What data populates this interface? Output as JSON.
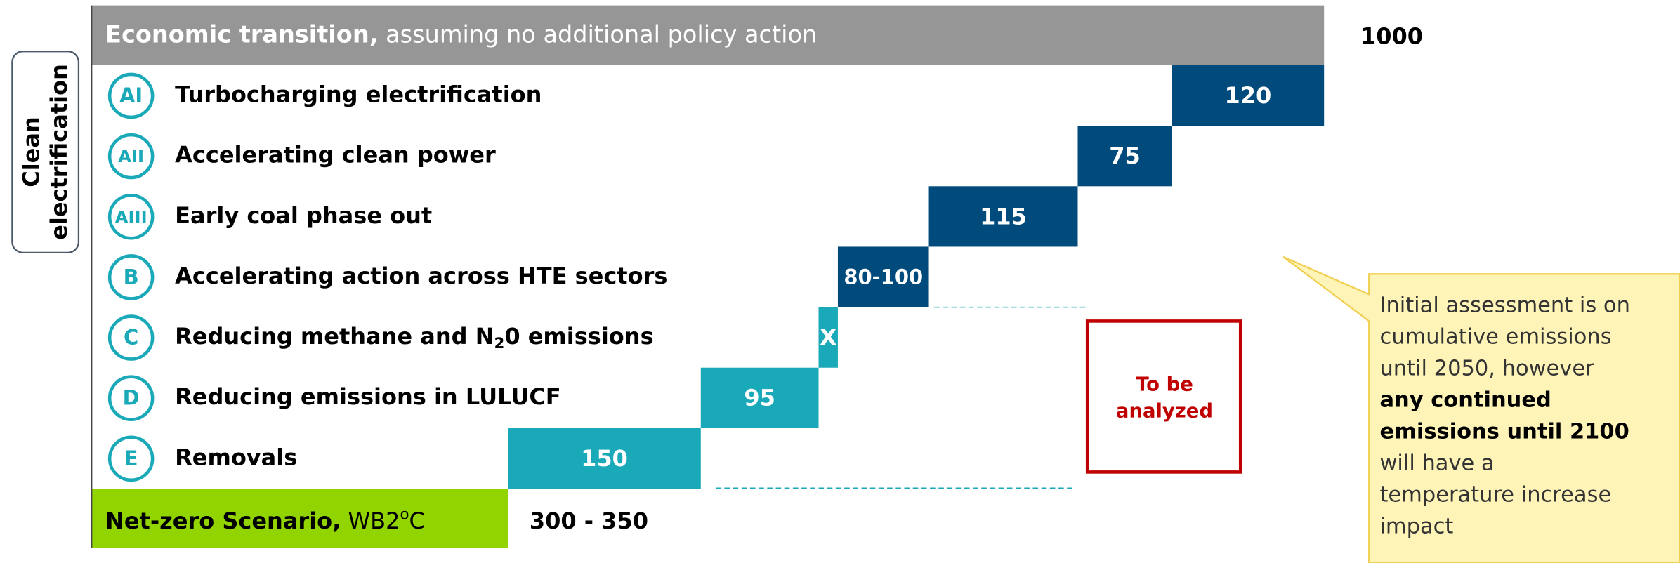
{
  "header": {
    "title_bold": "Economic transition,",
    "title_rest": " assuming no additional policy action",
    "value": "1000"
  },
  "side_label": [
    "Clean",
    "electrification"
  ],
  "rows": [
    {
      "badge": "AI",
      "label": "Turbocharging electrification",
      "bar": "120"
    },
    {
      "badge": "AII",
      "label": "Accelerating clean power",
      "bar": "75"
    },
    {
      "badge": "AIII",
      "label": "Early coal phase out",
      "bar": "115"
    },
    {
      "badge": "B",
      "label": "Accelerating action across HTE sectors",
      "bar": "80-100"
    },
    {
      "badge": "C",
      "label": "Reducing methane and N",
      "label_sub": "2",
      "label_end": "0 emissions",
      "bar": "X"
    },
    {
      "badge": "D",
      "label": "Reducing emissions in LULUCF",
      "bar": "95"
    },
    {
      "badge": "E",
      "label": "Removals",
      "bar": "150"
    }
  ],
  "pending": [
    "To be",
    "analyzed"
  ],
  "footer": {
    "title_bold": "Net-zero Scenario,",
    "title_rest": " WB2",
    "title_sup": "o",
    "title_end": "C",
    "value": "300 - 350"
  },
  "callout": {
    "lines": [
      "Initial assessment is on",
      "cumulative emissions",
      "until 2050, however"
    ],
    "bold_lines": [
      "any continued",
      "emissions until 2100"
    ],
    "end_lines": [
      "will have a",
      "temperature increase",
      "impact"
    ]
  }
}
